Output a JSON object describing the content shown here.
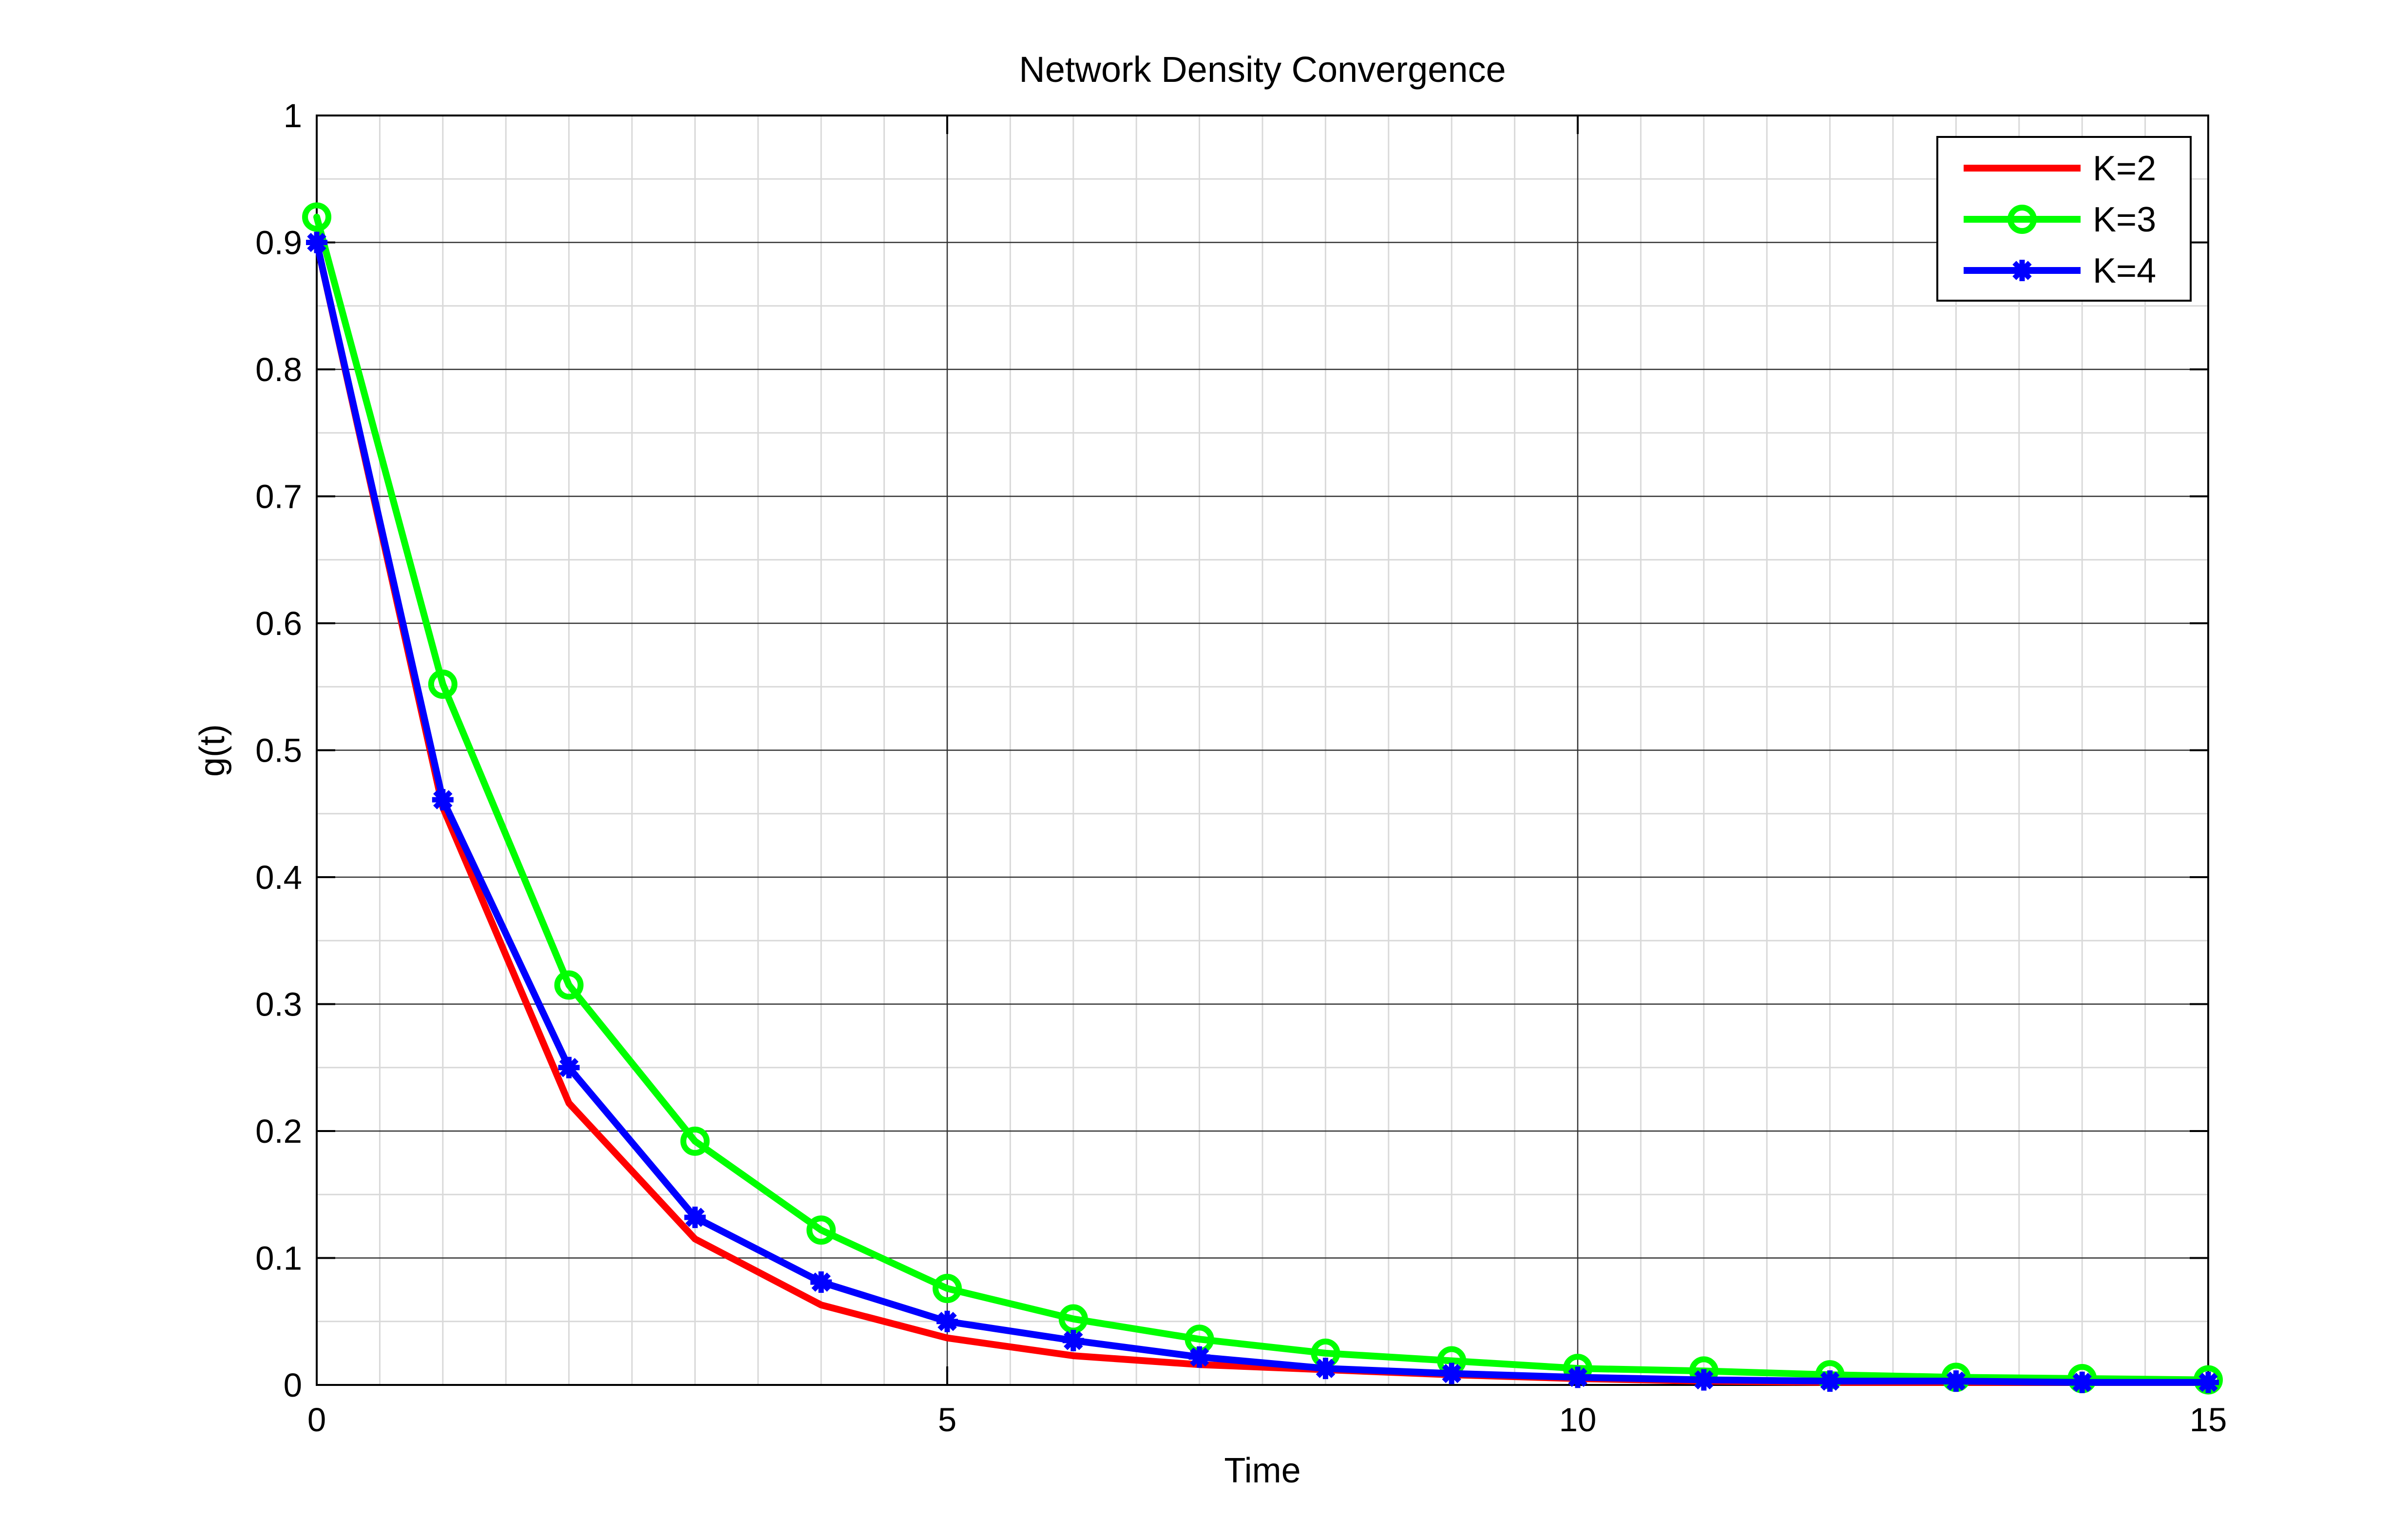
{
  "chart_data": {
    "type": "line",
    "title": "Network Density Convergence",
    "xlabel": "Time",
    "ylabel": "g(t)",
    "xlim": [
      0,
      15
    ],
    "ylim": [
      0,
      1
    ],
    "xticks": [
      0,
      5,
      10,
      15
    ],
    "yticks": [
      0,
      0.1,
      0.2,
      0.3,
      0.4,
      0.5,
      0.6,
      0.7,
      0.8,
      0.9,
      1
    ],
    "xtick_labels": [
      "0",
      "5",
      "10",
      "15"
    ],
    "ytick_labels": [
      "0",
      "0.1",
      "0.2",
      "0.3",
      "0.4",
      "0.5",
      "0.6",
      "0.7",
      "0.8",
      "0.9",
      "1"
    ],
    "grid": true,
    "minor_grid": true,
    "legend_position": "top-right",
    "x": [
      0,
      1,
      2,
      3,
      4,
      5,
      6,
      7,
      8,
      9,
      10,
      11,
      12,
      13,
      14,
      15
    ],
    "series": [
      {
        "name": "K=2",
        "color": "#ff0000",
        "marker": "none",
        "values": [
          0.9,
          0.455,
          0.222,
          0.115,
          0.063,
          0.037,
          0.023,
          0.016,
          0.012,
          0.008,
          0.005,
          0.003,
          0.002,
          0.002,
          0.002,
          0.002
        ]
      },
      {
        "name": "K=3",
        "color": "#00ff00",
        "marker": "circle",
        "values": [
          0.92,
          0.552,
          0.315,
          0.192,
          0.122,
          0.076,
          0.052,
          0.036,
          0.025,
          0.019,
          0.013,
          0.011,
          0.008,
          0.006,
          0.005,
          0.004
        ]
      },
      {
        "name": "K=4",
        "color": "#0000ff",
        "marker": "asterisk",
        "values": [
          0.9,
          0.461,
          0.25,
          0.132,
          0.081,
          0.05,
          0.035,
          0.022,
          0.013,
          0.009,
          0.006,
          0.004,
          0.003,
          0.003,
          0.002,
          0.002
        ]
      }
    ]
  }
}
